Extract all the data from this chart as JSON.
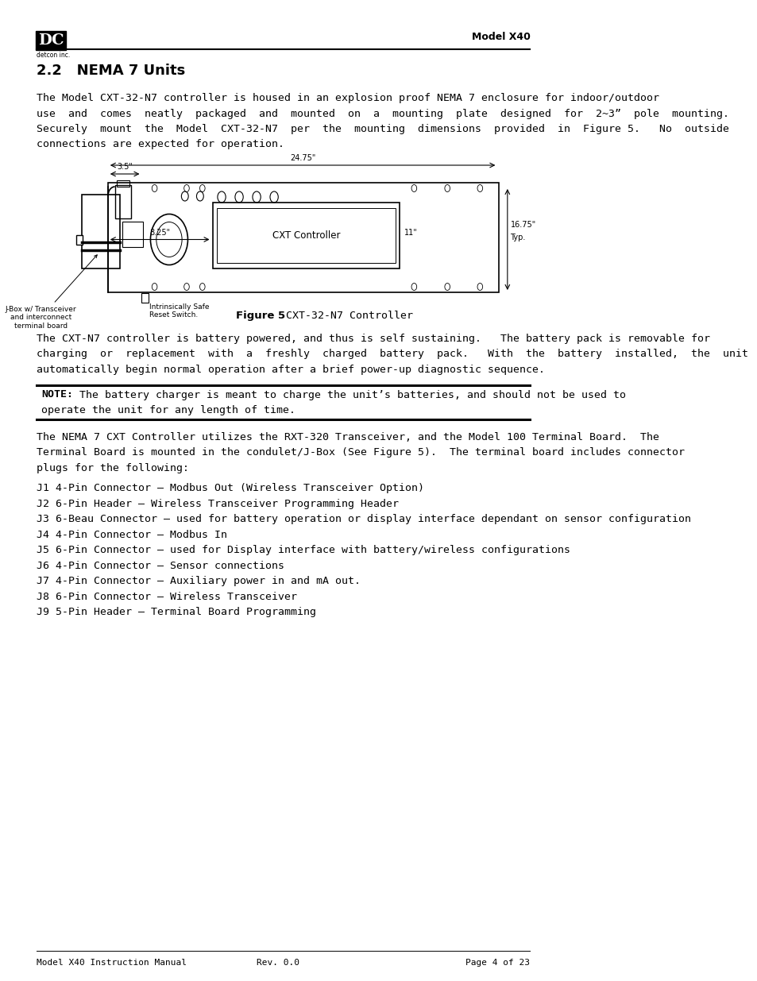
{
  "page_width": 9.54,
  "page_height": 12.35,
  "bg_color": "#ffffff",
  "header_logo_text": "detcon inc.",
  "header_right_text": "Model X40",
  "section_title": "2.2   NEMA 7 Units",
  "para1_lines": [
    "The Model CXT-32-N7 controller is housed in an explosion proof NEMA 7 enclosure for indoor/outdoor",
    "use  and  comes  neatly  packaged  and  mounted  on  a  mounting  plate  designed  for  2~3”  pole  mounting.",
    "Securely  mount  the  Model  CXT-32-N7  per  the  mounting  dimensions  provided  in  Figure 5.   No  outside",
    "connections are expected for operation."
  ],
  "figure_caption_bold": "Figure 5",
  "figure_caption_rest": " CXT-32-N7 Controller",
  "para2_lines": [
    "The CXT-N7 controller is battery powered, and thus is self sustaining.   The battery pack is removable for",
    "charging  or  replacement  with  a  freshly  charged  battery  pack.   With  the  battery  installed,  the  unit  will",
    "automatically begin normal operation after a brief power-up diagnostic sequence."
  ],
  "note_bold": "NOTE:",
  "note_line1": "  The battery charger is meant to charge the unit’s batteries, and should not be used to",
  "note_line2": "operate the unit for any length of time.",
  "para3_lines": [
    "The NEMA 7 CXT Controller utilizes the RXT-320 Transceiver, and the Model 100 Terminal Board.  The",
    "Terminal Board is mounted in the condulet/J-Box (See Figure 5).  The terminal board includes connector",
    "plugs for the following:"
  ],
  "list_items": [
    "J1 4-Pin Connector – Modbus Out (Wireless Transceiver Option)",
    "J2 6-Pin Header – Wireless Transceiver Programming Header",
    "J3 6-Beau Connector – used for battery operation or display interface dependant on sensor configuration",
    "J4 4-Pin Connector – Modbus In",
    "J5 6-Pin Connector – used for Display interface with battery/wireless configurations",
    "J6 4-Pin Connector – Sensor connections",
    "J7 4-Pin Connector – Auxiliary power in and mA out.",
    "J8 6-Pin Connector – Wireless Transceiver",
    "J9 5-Pin Header – Terminal Board Programming"
  ],
  "footer_left": "Model X40 Instruction Manual",
  "footer_center": "Rev. 0.0",
  "footer_right": "Page 4 of 23",
  "body_font_size": 9.5,
  "title_font_size": 13
}
